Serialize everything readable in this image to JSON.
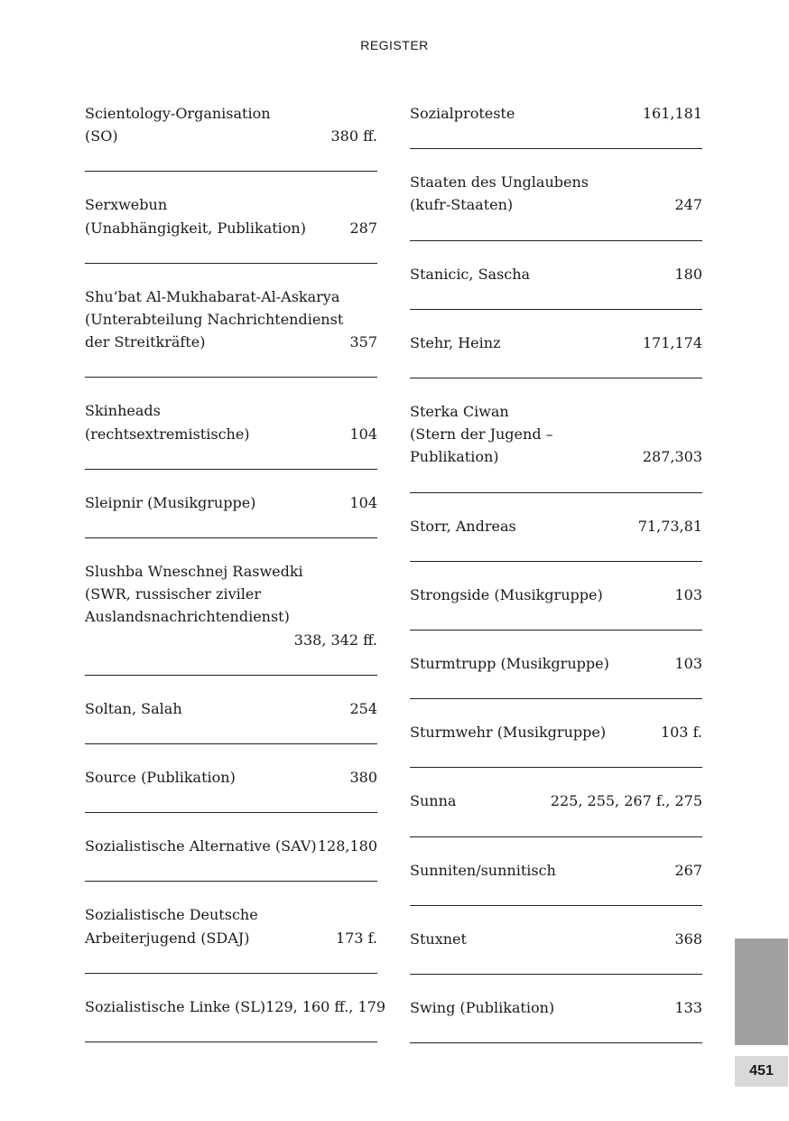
{
  "header": "REGISTER",
  "page_number": "451",
  "left_entries": [
    {
      "lines": [
        "Scientology-Organisation",
        "(SO)"
      ],
      "pages": "380 ff."
    },
    {
      "lines": [
        "Serxwebun",
        "(Unabhängigkeit, Publikation)"
      ],
      "pages": "287"
    },
    {
      "lines": [
        "Shu’bat Al-Mukhabarat-Al-Askarya",
        "(Unterabteilung Nachrichtendienst",
        "der Streitkräfte)"
      ],
      "pages": "357"
    },
    {
      "lines": [
        "Skinheads",
        "(rechtsextremistische)"
      ],
      "pages": "104"
    },
    {
      "lines": [
        "Sleipnir (Musikgruppe)"
      ],
      "pages": "104"
    },
    {
      "lines": [
        "Slushba Wneschnej Raswedki",
        "(SWR, russischer ziviler",
        "Auslandsnachrichtendienst)",
        ""
      ],
      "pages": "338, 342 ff."
    },
    {
      "lines": [
        "Soltan, Salah"
      ],
      "pages": "254"
    },
    {
      "lines": [
        "Source (Publikation)"
      ],
      "pages": "380"
    },
    {
      "lines": [
        "Sozialistische Alternative (SAV)"
      ],
      "pages": "128,180"
    },
    {
      "lines": [
        "Sozialistische Deutsche",
        "Arbeiterjugend (SDAJ)"
      ],
      "pages": "173 f."
    },
    {
      "lines": [
        "Sozialistische Linke (SL)"
      ],
      "pages": "129, 160 ff., 179"
    }
  ],
  "right_entries": [
    {
      "lines": [
        "Sozialproteste"
      ],
      "pages": "161,181"
    },
    {
      "lines": [
        "Staaten des Unglaubens",
        "(kufr-Staaten)"
      ],
      "pages": "247"
    },
    {
      "lines": [
        "Stanicic, Sascha"
      ],
      "pages": "180"
    },
    {
      "lines": [
        "Stehr, Heinz"
      ],
      "pages": "171,174"
    },
    {
      "lines": [
        "Sterka Ciwan",
        "(Stern der Jugend –",
        "Publikation)"
      ],
      "pages": "287,303"
    },
    {
      "lines": [
        "Storr, Andreas"
      ],
      "pages": "71,73,81"
    },
    {
      "lines": [
        "Strongside (Musikgruppe)"
      ],
      "pages": "103"
    },
    {
      "lines": [
        "Sturmtrupp (Musikgruppe)"
      ],
      "pages": "103"
    },
    {
      "lines": [
        "Sturmwehr (Musikgruppe)"
      ],
      "pages": "103 f."
    },
    {
      "lines": [
        "Sunna"
      ],
      "pages": "225, 255, 267 f., 275"
    },
    {
      "lines": [
        "Sunniten/sunnitisch"
      ],
      "pages": "267"
    },
    {
      "lines": [
        "Stuxnet"
      ],
      "pages": "368"
    },
    {
      "lines": [
        "Swing (Publikation)"
      ],
      "pages": "133"
    }
  ],
  "colors": {
    "thumb_tab": "#a0a0a0",
    "page_number_bg": "#d9d9d9"
  }
}
